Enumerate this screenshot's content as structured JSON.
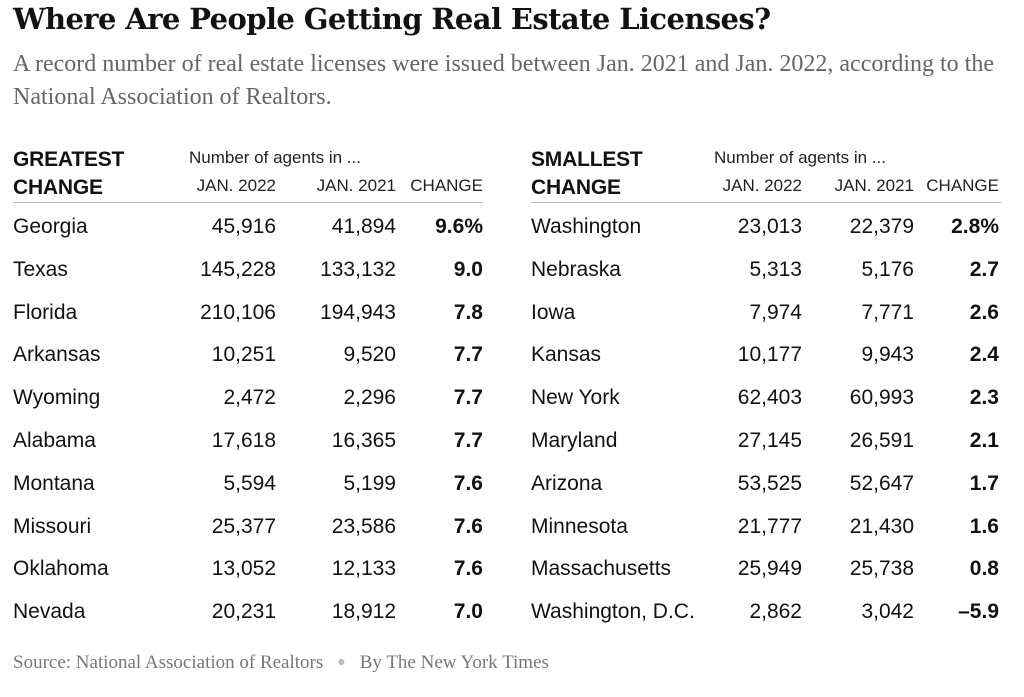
{
  "title": "Where Are People Getting Real Estate Licenses?",
  "subtitle": "A record number of real estate licenses were issued between Jan. 2021 and Jan. 2022, according to the National Association of Realtors.",
  "header": {
    "super": "Number of agents in ...",
    "col_2022": "JAN. 2022",
    "col_2021": "JAN. 2021",
    "col_change": "CHANGE"
  },
  "chart_data": {
    "type": "table",
    "tables": [
      {
        "group": "GREATEST\nCHANGE",
        "rows": [
          {
            "state": "Georgia",
            "jan2022": "45,916",
            "jan2021": "41,894",
            "change": "9.6%"
          },
          {
            "state": "Texas",
            "jan2022": "145,228",
            "jan2021": "133,132",
            "change": "9.0"
          },
          {
            "state": "Florida",
            "jan2022": "210,106",
            "jan2021": "194,943",
            "change": "7.8"
          },
          {
            "state": "Arkansas",
            "jan2022": "10,251",
            "jan2021": "9,520",
            "change": "7.7"
          },
          {
            "state": "Wyoming",
            "jan2022": "2,472",
            "jan2021": "2,296",
            "change": "7.7"
          },
          {
            "state": "Alabama",
            "jan2022": "17,618",
            "jan2021": "16,365",
            "change": "7.7"
          },
          {
            "state": "Montana",
            "jan2022": "5,594",
            "jan2021": "5,199",
            "change": "7.6"
          },
          {
            "state": "Missouri",
            "jan2022": "25,377",
            "jan2021": "23,586",
            "change": "7.6"
          },
          {
            "state": "Oklahoma",
            "jan2022": "13,052",
            "jan2021": "12,133",
            "change": "7.6"
          },
          {
            "state": "Nevada",
            "jan2022": "20,231",
            "jan2021": "18,912",
            "change": "7.0"
          }
        ]
      },
      {
        "group": "SMALLEST\nCHANGE",
        "rows": [
          {
            "state": "Washington",
            "jan2022": "23,013",
            "jan2021": "22,379",
            "change": "2.8%"
          },
          {
            "state": "Nebraska",
            "jan2022": "5,313",
            "jan2021": "5,176",
            "change": "2.7"
          },
          {
            "state": "Iowa",
            "jan2022": "7,974",
            "jan2021": "7,771",
            "change": "2.6"
          },
          {
            "state": "Kansas",
            "jan2022": "10,177",
            "jan2021": "9,943",
            "change": "2.4"
          },
          {
            "state": "New York",
            "jan2022": "62,403",
            "jan2021": "60,993",
            "change": "2.3"
          },
          {
            "state": "Maryland",
            "jan2022": "27,145",
            "jan2021": "26,591",
            "change": "2.1"
          },
          {
            "state": "Arizona",
            "jan2022": "53,525",
            "jan2021": "52,647",
            "change": "1.7"
          },
          {
            "state": "Minnesota",
            "jan2022": "21,777",
            "jan2021": "21,430",
            "change": "1.6"
          },
          {
            "state": "Massachusetts",
            "jan2022": "25,949",
            "jan2021": "25,738",
            "change": "0.8"
          },
          {
            "state": "Washington, D.C.",
            "jan2022": "2,862",
            "jan2021": "3,042",
            "change": "–5.9"
          }
        ]
      }
    ]
  },
  "footer": {
    "source": "Source: National Association of Realtors",
    "credit": "By The New York Times"
  }
}
